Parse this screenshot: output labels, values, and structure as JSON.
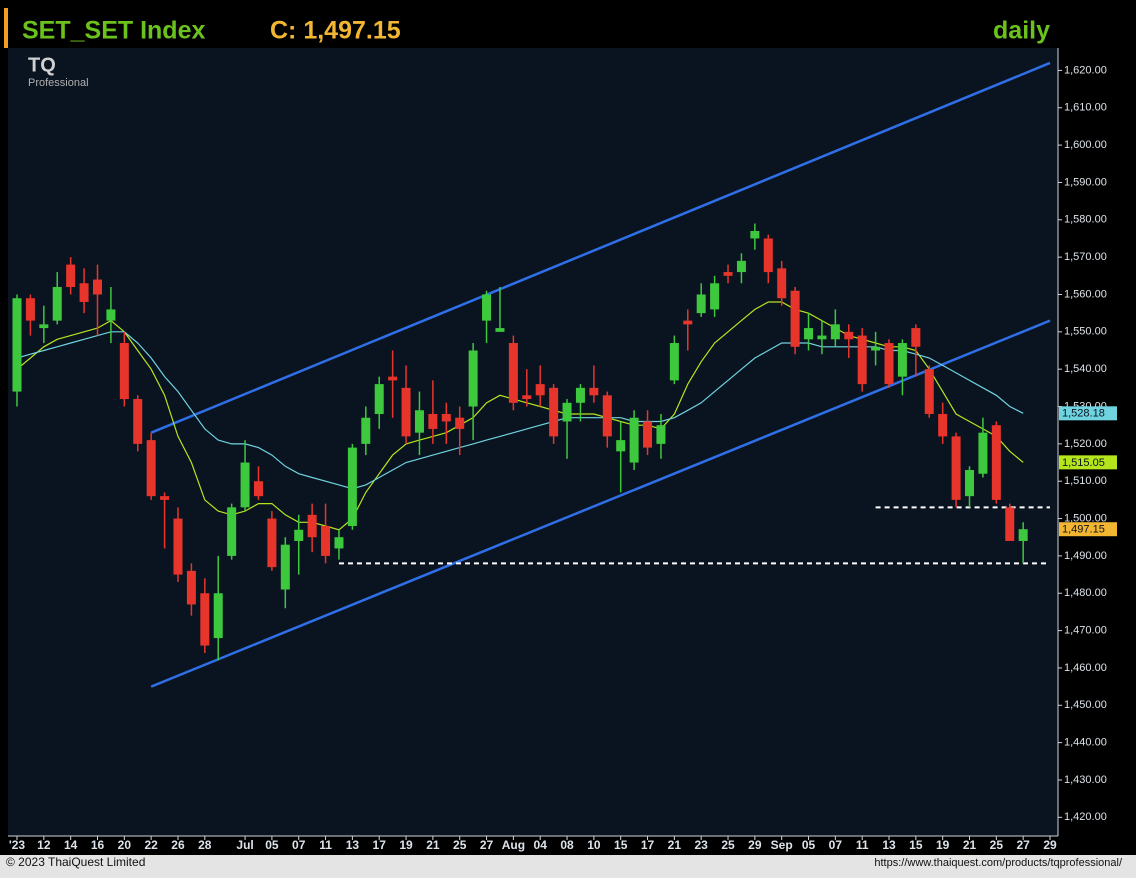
{
  "chart_data": {
    "type": "candlestick",
    "title": "SET_SET Index",
    "subtitle": "C: 1,497.15",
    "period": "daily",
    "logo": {
      "text": "TQ",
      "sub": "Professional"
    },
    "footer": {
      "copyright": "© 2023 ThaiQuest Limited",
      "url": "https://www.thaiquest.com/products/tqprofessional/"
    },
    "up_color": "#3ec83e",
    "down_color": "#e8352c",
    "categories": [
      "'23",
      null,
      "12",
      null,
      "14",
      null,
      "16",
      null,
      "20",
      null,
      "22",
      null,
      "26",
      null,
      "28",
      null,
      null,
      "Jul",
      null,
      "05",
      null,
      "07",
      null,
      "11",
      null,
      "13",
      null,
      "17",
      null,
      "19",
      null,
      "21",
      null,
      "25",
      null,
      "27",
      null,
      "Aug",
      null,
      "04",
      null,
      "08",
      null,
      "10",
      null,
      "15",
      null,
      "17",
      null,
      "21",
      null,
      "23",
      null,
      "25",
      null,
      "29",
      null,
      "Sep",
      null,
      "05",
      null,
      "07",
      null,
      "11",
      null,
      "13",
      null,
      "15",
      null,
      "19",
      null,
      "21",
      null,
      "25",
      null,
      "27",
      null,
      "29"
    ],
    "open": [
      1534,
      1559,
      1551,
      1553,
      1568,
      1563,
      1564,
      1553,
      1547,
      1532,
      1521,
      1506,
      1500,
      1486,
      1480,
      1468,
      1490,
      1503,
      1510,
      1500,
      1481,
      1494,
      1501,
      1498,
      1492,
      1498,
      1520,
      1528,
      1538,
      1535,
      1523,
      1528,
      1528,
      1527,
      1530,
      1553,
      1550,
      1547,
      1533,
      1536,
      1535,
      1526,
      1531,
      1535,
      1533,
      1518,
      1515,
      1526,
      1520,
      1537,
      1553,
      1555,
      1556,
      1566,
      1566,
      1575,
      1575,
      1567,
      1561,
      1548,
      1548,
      1548,
      1550,
      1549,
      1545,
      1547,
      1538,
      1551,
      1540,
      1528,
      1522,
      1506,
      1512,
      1525,
      1503,
      1494,
      null,
      null
    ],
    "high": [
      1560,
      1560,
      1557,
      1566,
      1570,
      1567,
      1568,
      1562,
      1550,
      1533,
      1523,
      1507,
      1503,
      1488,
      1484,
      1490,
      1504,
      1521,
      1514,
      1502,
      1495,
      1501,
      1504,
      1504,
      1497,
      1520,
      1530,
      1538,
      1545,
      1541,
      1534,
      1537,
      1531,
      1530,
      1547,
      1561,
      1562,
      1549,
      1540,
      1541,
      1536,
      1532,
      1536,
      1541,
      1534,
      1526,
      1529,
      1529,
      1528,
      1549,
      1556,
      1563,
      1565,
      1568,
      1571,
      1579,
      1576,
      1569,
      1562,
      1555,
      1553,
      1556,
      1552,
      1551,
      1550,
      1548,
      1548,
      1552,
      1541,
      1531,
      1523,
      1514,
      1527,
      1526,
      1504,
      1499,
      null,
      null
    ],
    "low": [
      1530,
      1549,
      1547,
      1552,
      1560,
      1555,
      1549,
      1547,
      1530,
      1518,
      1505,
      1492,
      1483,
      1474,
      1464,
      1462,
      1489,
      1502,
      1505,
      1486,
      1476,
      1485,
      1491,
      1488,
      1489,
      1497,
      1517,
      1524,
      1527,
      1520,
      1517,
      1520,
      1520,
      1517,
      1521,
      1547,
      1550,
      1529,
      1530,
      1530,
      1520,
      1516,
      1526,
      1531,
      1519,
      1507,
      1513,
      1517,
      1516,
      1536,
      1545,
      1554,
      1554,
      1563,
      1563,
      1572,
      1563,
      1557,
      1544,
      1545,
      1544,
      1546,
      1543,
      1534,
      1541,
      1535,
      1533,
      1538,
      1527,
      1520,
      1503,
      1503,
      1511,
      1504,
      1494,
      1488,
      null,
      null
    ],
    "close": [
      1559,
      1553,
      1552,
      1562,
      1562,
      1558,
      1560,
      1556,
      1532,
      1520,
      1506,
      1505,
      1485,
      1477,
      1466,
      1480,
      1503,
      1515,
      1506,
      1487,
      1493,
      1497,
      1495,
      1490,
      1495,
      1519,
      1527,
      1536,
      1537,
      1522,
      1529,
      1524,
      1526,
      1524,
      1545,
      1560,
      1551,
      1531,
      1532,
      1533,
      1522,
      1531,
      1535,
      1533,
      1522,
      1521,
      1527,
      1519,
      1525,
      1547,
      1552,
      1560,
      1563,
      1565,
      1569,
      1577,
      1566,
      1559,
      1546,
      1551,
      1549,
      1552,
      1548,
      1536,
      1546,
      1536,
      1547,
      1546,
      1528,
      1522,
      1505,
      1513,
      1523,
      1505,
      1494,
      1497.15,
      null,
      null
    ],
    "close_labels": [
      null,
      null,
      null,
      null,
      null,
      null,
      null,
      null,
      null,
      null,
      null,
      null,
      null,
      null,
      null,
      null,
      null,
      null,
      null,
      null,
      null,
      null,
      null,
      null,
      null,
      null,
      null,
      null,
      null,
      null,
      null,
      null,
      null,
      null,
      null,
      null,
      null,
      null,
      null,
      null,
      null,
      null,
      null,
      null,
      null,
      null,
      null,
      null,
      null,
      null,
      null,
      null,
      null,
      null,
      null,
      null,
      null,
      null,
      null,
      null,
      null,
      null,
      null,
      null,
      null,
      null,
      null,
      null,
      null,
      null,
      null,
      null,
      null,
      null,
      null,
      "1,497.15",
      null,
      null
    ],
    "close_label_color": "#f2b632",
    "lines": [
      {
        "color": "#b5e61d",
        "values": [
          1540,
          1543,
          1546,
          1548,
          1549,
          1550,
          1551,
          1553,
          1550,
          1545,
          1540,
          1533,
          1522,
          1515,
          1505,
          1502,
          1501,
          1502,
          1504,
          1504,
          1501,
          1499,
          1499,
          1498,
          1497,
          1500,
          1507,
          1512,
          1517,
          1520,
          1521,
          1522,
          1523,
          1525,
          1527,
          1531,
          1533,
          1532,
          1531,
          1530,
          1529,
          1528,
          1528,
          1528,
          1527,
          1526,
          1525,
          1525,
          1524,
          1528,
          1536,
          1542,
          1547,
          1550,
          1553,
          1556,
          1558,
          1558,
          1556,
          1555,
          1553,
          1551,
          1549,
          1548,
          1547,
          1546,
          1546,
          1545,
          1540,
          1534,
          1528,
          1526,
          1524,
          1522,
          1518,
          1515.05,
          null,
          null
        ],
        "value_labels": [
          null,
          null,
          null,
          null,
          null,
          null,
          null,
          null,
          null,
          null,
          null,
          null,
          null,
          null,
          null,
          null,
          null,
          null,
          null,
          null,
          null,
          null,
          null,
          null,
          null,
          null,
          null,
          null,
          null,
          null,
          null,
          null,
          null,
          null,
          null,
          null,
          null,
          null,
          null,
          null,
          null,
          null,
          null,
          null,
          null,
          null,
          null,
          null,
          null,
          null,
          null,
          null,
          null,
          null,
          null,
          null,
          null,
          null,
          null,
          null,
          null,
          null,
          null,
          null,
          null,
          null,
          null,
          null,
          null,
          null,
          null,
          null,
          null,
          null,
          null,
          "1,515.05",
          null,
          null
        ]
      },
      {
        "color": "#6fd3e0",
        "values": [
          1543,
          1544,
          1545,
          1546,
          1547,
          1548,
          1549,
          1550,
          1550,
          1547,
          1543,
          1538,
          1534,
          1529,
          1524,
          1521,
          1520,
          1520,
          1519,
          1517,
          1514,
          1512,
          1511,
          1510,
          1509,
          1508,
          1509,
          1511,
          1513,
          1515,
          1516,
          1517,
          1518,
          1519,
          1520,
          1521,
          1522,
          1523,
          1524,
          1525,
          1526,
          1527,
          1527,
          1527,
          1527,
          1527,
          1526,
          1526,
          1526,
          1527,
          1529,
          1531,
          1534,
          1537,
          1540,
          1543,
          1545,
          1547,
          1547,
          1547,
          1546,
          1546,
          1546,
          1546,
          1546,
          1545,
          1545,
          1544,
          1543,
          1541,
          1539,
          1537,
          1535,
          1533,
          1530,
          1528.18,
          null,
          null
        ],
        "value_labels": [
          null,
          null,
          null,
          null,
          null,
          null,
          null,
          null,
          null,
          null,
          null,
          null,
          null,
          null,
          null,
          null,
          null,
          null,
          null,
          null,
          null,
          null,
          null,
          null,
          null,
          null,
          null,
          null,
          null,
          null,
          null,
          null,
          null,
          null,
          null,
          null,
          null,
          null,
          null,
          null,
          null,
          null,
          null,
          null,
          null,
          null,
          null,
          null,
          null,
          null,
          null,
          null,
          null,
          null,
          null,
          null,
          null,
          null,
          null,
          null,
          null,
          null,
          null,
          null,
          null,
          null,
          null,
          null,
          null,
          null,
          null,
          null,
          null,
          null,
          null,
          "1,528.18",
          null,
          null
        ]
      }
    ],
    "trendlines": [
      {
        "color": "#2f6fe8",
        "style": "solid",
        "x": [
          10,
          77
        ],
        "values": [
          1523,
          1622
        ]
      },
      {
        "color": "#2f6fe8",
        "style": "solid",
        "x": [
          10,
          77
        ],
        "values": [
          1455,
          1553
        ]
      },
      {
        "color": "#ffffff",
        "style": "dashed",
        "x": [
          64,
          77
        ],
        "values": [
          1503,
          1503
        ]
      },
      {
        "color": "#ffffff",
        "style": "dashed",
        "x": [
          24,
          77
        ],
        "values": [
          1488,
          1488
        ]
      }
    ],
    "ylim": [
      1415,
      1626
    ],
    "yticks": [
      {
        "value": 1420,
        "label": "1,420.00"
      },
      {
        "value": 1430,
        "label": "1,430.00"
      },
      {
        "value": 1440,
        "label": "1,440.00"
      },
      {
        "value": 1450,
        "label": "1,450.00"
      },
      {
        "value": 1460,
        "label": "1,460.00"
      },
      {
        "value": 1470,
        "label": "1,470.00"
      },
      {
        "value": 1480,
        "label": "1,480.00"
      },
      {
        "value": 1490,
        "label": "1,490.00"
      },
      {
        "value": 1500,
        "label": "1,500.00"
      },
      {
        "value": 1510,
        "label": "1,510.00"
      },
      {
        "value": 1520,
        "label": "1,520.00"
      },
      {
        "value": 1530,
        "label": "1,530.00"
      },
      {
        "value": 1540,
        "label": "1,540.00"
      },
      {
        "value": 1550,
        "label": "1,550.00"
      },
      {
        "value": 1560,
        "label": "1,560.00"
      },
      {
        "value": 1570,
        "label": "1,570.00"
      },
      {
        "value": 1580,
        "label": "1,580.00"
      },
      {
        "value": 1590,
        "label": "1,590.00"
      },
      {
        "value": 1600,
        "label": "1,600.00"
      },
      {
        "value": 1610,
        "label": "1,610.00"
      },
      {
        "value": 1620,
        "label": "1,620.00"
      }
    ],
    "grid": false
  }
}
